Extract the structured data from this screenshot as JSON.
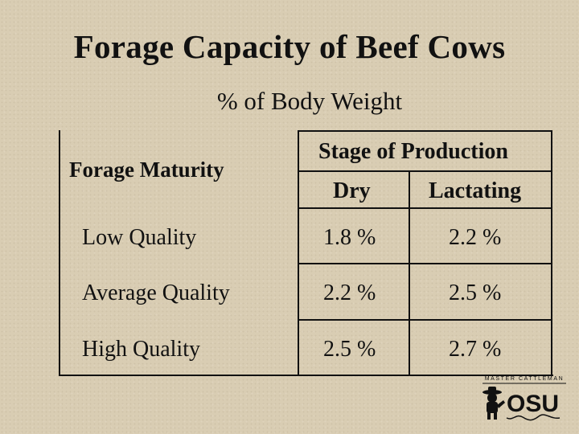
{
  "slide": {
    "title": "Forage Capacity of Beef Cows",
    "subtitle": "% of Body Weight"
  },
  "table": {
    "row_header_label": "Forage Maturity",
    "group_header": "Stage of Production",
    "columns": [
      "Dry",
      "Lactating"
    ],
    "rows": [
      {
        "label": "Low Quality",
        "values": [
          "1.8 %",
          "2.2 %"
        ]
      },
      {
        "label": "Average Quality",
        "values": [
          "2.2 %",
          "2.5 %"
        ]
      },
      {
        "label": "High Quality",
        "values": [
          "2.5 %",
          "2.7 %"
        ]
      }
    ]
  },
  "logo": {
    "text_top": "MASTER CATTLEMAN",
    "text_main": "OSU",
    "icon": "cowboy-logo-icon"
  }
}
